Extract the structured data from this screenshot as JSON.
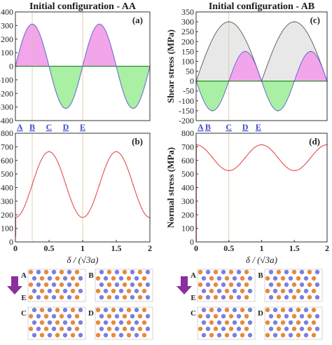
{
  "chart_data": [
    {
      "panel": "a",
      "type": "area",
      "title": "Initial configuration - AA",
      "panel_label": "(a)",
      "xlim": [
        0,
        2
      ],
      "ylim": [
        -400,
        400
      ],
      "yticks": [
        "400",
        "300",
        "200",
        "100",
        "0",
        "-100",
        "-200",
        "-300",
        "-400"
      ],
      "point_labels": [
        "A",
        "B",
        "C",
        "D",
        "E"
      ],
      "point_x": [
        0,
        0.25,
        0.5,
        0.75,
        1.0
      ],
      "vlines": [
        0.25,
        1.0
      ],
      "series": [
        {
          "x": [
            0,
            0.25,
            0.5,
            0.75,
            1.0,
            1.25,
            1.5,
            1.75,
            2.0
          ],
          "y": [
            0,
            310,
            0,
            -310,
            0,
            310,
            0,
            -310,
            0
          ]
        }
      ],
      "colors": {
        "positive": "#f3a5ec",
        "negative": "#a9f0a4",
        "line": "#7777cc"
      }
    },
    {
      "panel": "b",
      "type": "line",
      "panel_label": "(b)",
      "xlabel": "δ / (√3a)",
      "xlim": [
        0,
        2
      ],
      "ylim": [
        0,
        800
      ],
      "xticks": [
        "0",
        "0.5",
        "1",
        "1.5",
        "2"
      ],
      "yticks": [
        "800",
        "700",
        "600",
        "500",
        "400",
        "300",
        "200",
        "100",
        "0"
      ],
      "vlines": [
        0.25,
        1.0
      ],
      "series": [
        {
          "x": [
            0,
            0.25,
            0.5,
            0.75,
            1.0,
            1.25,
            1.5,
            1.75,
            2.0
          ],
          "y": [
            180,
            420,
            665,
            420,
            180,
            420,
            665,
            420,
            180
          ]
        }
      ],
      "colors": {
        "line": "#e85a5a"
      }
    },
    {
      "panel": "c",
      "type": "area",
      "title": "Initial configuration - AB",
      "panel_label": "(c)",
      "ylabel": "Shear stress (MPa)",
      "xlim": [
        0,
        2
      ],
      "ylim": [
        -200,
        350
      ],
      "yticks": [
        "350",
        "300",
        "250",
        "200",
        "150",
        "100",
        "50",
        "0",
        "-50",
        "-100",
        "-150",
        "-200"
      ],
      "point_labels": [
        "A",
        "B",
        "C",
        "D",
        "E"
      ],
      "point_x": [
        0,
        0.18,
        0.5,
        0.75,
        0.95
      ],
      "vlines": [
        0.5
      ],
      "series": [
        {
          "name": "",
          "x": [
            0,
            0.5,
            1.0,
            1.5,
            2.0
          ],
          "y": [
            0,
            300,
            0,
            300,
            0
          ]
        },
        {
          "name": "",
          "x": [
            0,
            0.25,
            0.5,
            0.75,
            1.0,
            1.25,
            1.5,
            1.75,
            2.0
          ],
          "y": [
            0,
            -150,
            0,
            150,
            0,
            -150,
            0,
            150,
            0
          ]
        }
      ],
      "colors": {
        "gray": "#e8e8e8",
        "positive": "#f3a5ec",
        "negative": "#a9f0a4",
        "line": "#666666"
      }
    },
    {
      "panel": "d",
      "type": "line",
      "panel_label": "(d)",
      "ylabel": "Normal stress (MPa)",
      "xlabel": "δ / (√3a)",
      "xlim": [
        0,
        2
      ],
      "ylim": [
        0,
        800
      ],
      "xticks": [
        "0",
        "0.5",
        "1",
        "1.5",
        "2"
      ],
      "yticks": [
        "800",
        "700",
        "600",
        "500",
        "400",
        "300",
        "200",
        "100",
        "0"
      ],
      "vlines": [
        0.5
      ],
      "series": [
        {
          "x": [
            0,
            0.25,
            0.5,
            0.75,
            1.0,
            1.25,
            1.5,
            1.75,
            2.0
          ],
          "y": [
            715,
            620,
            525,
            620,
            715,
            620,
            525,
            620,
            715
          ]
        }
      ],
      "colors": {
        "line": "#e85a5a"
      }
    }
  ],
  "snapshots": {
    "left": [
      "A",
      "E",
      "B",
      "C",
      "D"
    ],
    "right": [
      "A",
      "E",
      "B",
      "C",
      "D"
    ]
  }
}
